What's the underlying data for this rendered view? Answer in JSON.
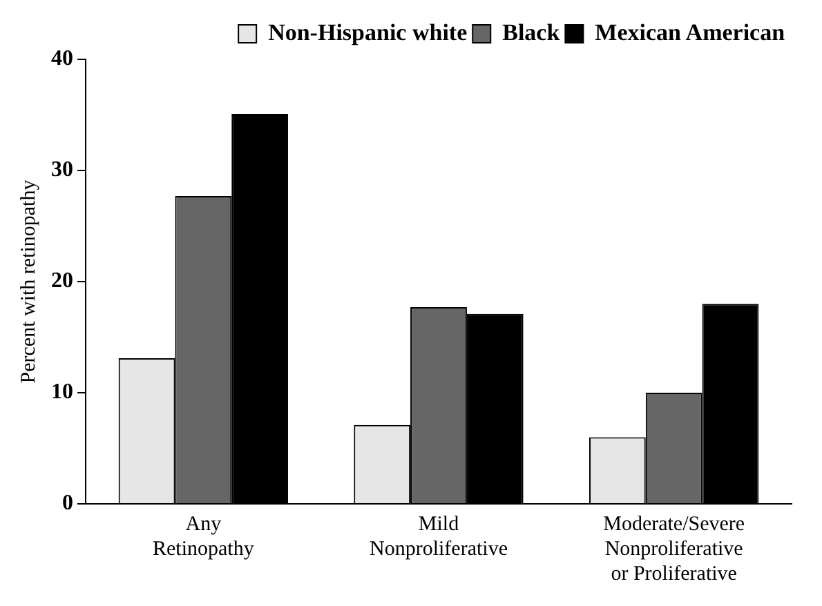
{
  "chart_data": {
    "type": "bar",
    "ylabel": "Percent with retinopathy",
    "categories": [
      "Any\nRetinopathy",
      "Mild\nNonproliferative",
      "Moderate/Severe\nNonproliferative\nor Proliferative"
    ],
    "series": [
      {
        "name": "Non-Hispanic white",
        "color": "#e6e6e6",
        "values": [
          13.1,
          7.1,
          6.0
        ]
      },
      {
        "name": "Black",
        "color": "#666666",
        "values": [
          27.7,
          17.7,
          10.0
        ]
      },
      {
        "name": "Mexican American",
        "color": "#000000",
        "values": [
          35.1,
          17.1,
          18.0
        ]
      }
    ],
    "ylim": [
      0,
      40
    ],
    "yticks": [
      0,
      10,
      20,
      30,
      40
    ],
    "grid": false,
    "legend": "top right"
  }
}
